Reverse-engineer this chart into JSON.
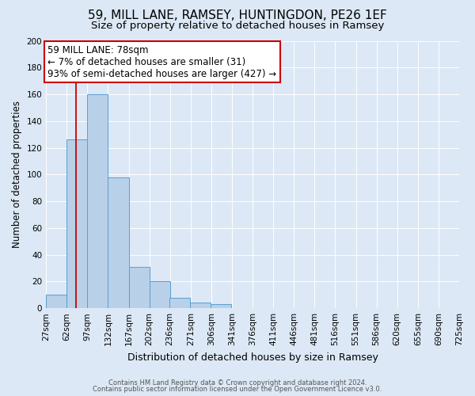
{
  "title": "59, MILL LANE, RAMSEY, HUNTINGDON, PE26 1EF",
  "subtitle": "Size of property relative to detached houses in Ramsey",
  "xlabel": "Distribution of detached houses by size in Ramsey",
  "ylabel": "Number of detached properties",
  "footer_line1": "Contains HM Land Registry data © Crown copyright and database right 2024.",
  "footer_line2": "Contains public sector information licensed under the Open Government Licence v3.0.",
  "bar_left_edges": [
    27,
    62,
    97,
    132,
    167,
    202,
    236,
    271,
    306,
    341,
    376,
    411,
    446,
    481,
    516,
    551,
    586,
    620,
    655,
    690
  ],
  "bar_heights": [
    10,
    126,
    160,
    98,
    31,
    20,
    8,
    4,
    3,
    0,
    0,
    0,
    0,
    0,
    0,
    0,
    0,
    0,
    0,
    0
  ],
  "bin_width": 35,
  "bar_color": "#b8d0e8",
  "bar_edge_color": "#5a9fd4",
  "x_tick_labels": [
    "27sqm",
    "62sqm",
    "97sqm",
    "132sqm",
    "167sqm",
    "202sqm",
    "236sqm",
    "271sqm",
    "306sqm",
    "341sqm",
    "376sqm",
    "411sqm",
    "446sqm",
    "481sqm",
    "516sqm",
    "551sqm",
    "586sqm",
    "620sqm",
    "655sqm",
    "690sqm",
    "725sqm"
  ],
  "ylim": [
    0,
    200
  ],
  "yticks": [
    0,
    20,
    40,
    60,
    80,
    100,
    120,
    140,
    160,
    180,
    200
  ],
  "property_line_x": 78,
  "property_line_color": "#cc0000",
  "annotation_title": "59 MILL LANE: 78sqm",
  "annotation_line1": "← 7% of detached houses are smaller (31)",
  "annotation_line2": "93% of semi-detached houses are larger (427) →",
  "annotation_box_color": "#ffffff",
  "annotation_box_edge_color": "#cc0000",
  "background_color": "#dce8f5",
  "grid_color": "#ffffff",
  "title_fontsize": 11,
  "subtitle_fontsize": 9.5,
  "ylabel_fontsize": 8.5,
  "xlabel_fontsize": 9,
  "annotation_fontsize": 8.5,
  "tick_fontsize": 7.5,
  "footer_fontsize": 6
}
